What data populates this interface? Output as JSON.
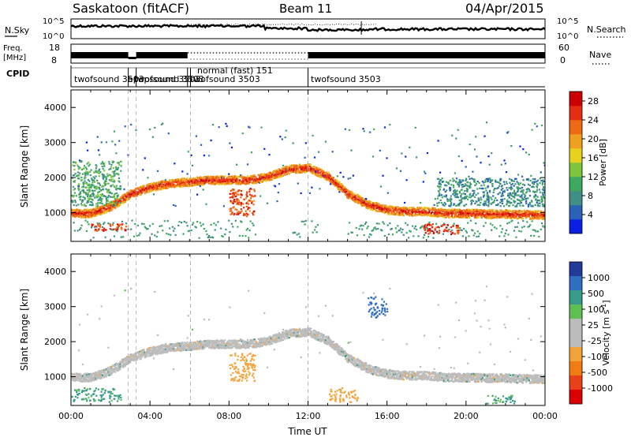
{
  "header": {
    "station": "Saskatoon (fitACF)",
    "beam": "Beam 11",
    "date": "04/Apr/2015"
  },
  "noise_panel": {
    "left_label": "N.Sky",
    "right_label": "N.Search",
    "left_ticks": [
      "10^5",
      "10^0"
    ],
    "right_ticks": [
      "10^5",
      "10^0"
    ]
  },
  "freq_panel": {
    "left_label": "Freq.",
    "left_unit": "[MHz]",
    "left_ticks": [
      "18",
      "8"
    ],
    "right_label": "Nave",
    "right_ticks": [
      "60",
      "0"
    ]
  },
  "cpid_panel": {
    "label": "CPID",
    "segments": [
      {
        "label": "twofsound 3503",
        "start_hour": 0.0
      },
      {
        "label": "epopsound 3503",
        "start_hour": 2.9
      },
      {
        "label": "twofsound 3503",
        "start_hour": 3.3
      },
      {
        "label": "normal (fast) 151",
        "start_hour": 5.9
      },
      {
        "label": "twofsound 3503",
        "start_hour": 6.05
      },
      {
        "label": "twofsound 3503",
        "start_hour": 12.0
      }
    ]
  },
  "colors": {
    "power_scale": [
      "#0a1fe6",
      "#2a62b8",
      "#3f8f86",
      "#3fa860",
      "#7bc43c",
      "#e6d11f",
      "#f0a020",
      "#ee6a14",
      "#e52d12",
      "#cc0000"
    ],
    "velocity_scale": [
      "#223a9a",
      "#2f6fc2",
      "#3a9a8a",
      "#5fc052",
      "#bcbcbc",
      "#bcbcbc",
      "#f2a43a",
      "#f07c12",
      "#e8401a",
      "#dd0000"
    ]
  },
  "chart_data": [
    {
      "type": "heatmap",
      "title": "Power",
      "xlabel": "",
      "ylabel": "Slant Range [km]",
      "xlim": [
        0,
        24
      ],
      "ylim": [
        180,
        4500
      ],
      "y_ticks": [
        "1000",
        "2000",
        "3000",
        "4000"
      ],
      "colorbar": {
        "label": "Power [dB]",
        "ticks": [
          "28",
          "24",
          "20",
          "16",
          "12",
          "8",
          "4"
        ],
        "range": [
          0,
          30
        ]
      },
      "main_trace": [
        {
          "x": 0.0,
          "y": 1000
        },
        {
          "x": 1.0,
          "y": 1000
        },
        {
          "x": 2.0,
          "y": 1200
        },
        {
          "x": 3.0,
          "y": 1550
        },
        {
          "x": 4.0,
          "y": 1750
        },
        {
          "x": 5.0,
          "y": 1850
        },
        {
          "x": 6.0,
          "y": 1900
        },
        {
          "x": 7.0,
          "y": 1950
        },
        {
          "x": 8.0,
          "y": 1950
        },
        {
          "x": 9.0,
          "y": 1950
        },
        {
          "x": 10.0,
          "y": 2050
        },
        {
          "x": 11.0,
          "y": 2250
        },
        {
          "x": 12.0,
          "y": 2300
        },
        {
          "x": 13.0,
          "y": 2050
        },
        {
          "x": 14.0,
          "y": 1550
        },
        {
          "x": 15.0,
          "y": 1250
        },
        {
          "x": 16.0,
          "y": 1100
        },
        {
          "x": 17.0,
          "y": 1050
        },
        {
          "x": 18.0,
          "y": 1050
        },
        {
          "x": 19.0,
          "y": 1000
        },
        {
          "x": 20.0,
          "y": 1000
        },
        {
          "x": 21.0,
          "y": 980
        },
        {
          "x": 22.0,
          "y": 980
        },
        {
          "x": 23.0,
          "y": 960
        },
        {
          "x": 24.0,
          "y": 950
        }
      ],
      "blobs": [
        {
          "x0": 8.0,
          "x1": 9.3,
          "y0": 900,
          "y1": 1700,
          "power": 24
        },
        {
          "x0": 1.0,
          "x1": 2.8,
          "y0": 500,
          "y1": 700,
          "power": 26
        },
        {
          "x0": 17.8,
          "x1": 19.6,
          "y0": 400,
          "y1": 700,
          "power": 26
        },
        {
          "x0": 0.0,
          "x1": 2.5,
          "y0": 1200,
          "y1": 2500,
          "power": 10
        },
        {
          "x0": 18.5,
          "x1": 24.0,
          "y0": 1200,
          "y1": 2000,
          "power": 8
        }
      ]
    },
    {
      "type": "heatmap",
      "title": "Velocity",
      "xlabel": "Time UT",
      "ylabel": "Slant Range [km]",
      "xlim": [
        0,
        24
      ],
      "ylim": [
        180,
        4500
      ],
      "y_ticks": [
        "1000",
        "2000",
        "3000",
        "4000"
      ],
      "x_ticks": [
        "00:00",
        "04:00",
        "08:00",
        "12:00",
        "16:00",
        "20:00",
        "00:00"
      ],
      "colorbar": {
        "label": "Velocity [m s^-1]",
        "ticks": [
          "1000",
          "500",
          "100",
          "25",
          "-25",
          "-100",
          "-500",
          "-1000"
        ],
        "range": [
          -1000,
          1000
        ]
      },
      "blobs": [
        {
          "x0": 8.0,
          "x1": 9.3,
          "y0": 900,
          "y1": 1700,
          "velocity": -300
        },
        {
          "x0": 0.0,
          "x1": 2.5,
          "y0": 300,
          "y1": 700,
          "velocity": 150
        },
        {
          "x0": 15.0,
          "x1": 16.0,
          "y0": 2700,
          "y1": 3300,
          "velocity": 800
        },
        {
          "x0": 13.0,
          "x1": 14.5,
          "y0": 300,
          "y1": 700,
          "velocity": -300
        },
        {
          "x0": 21.0,
          "x1": 22.5,
          "y0": 250,
          "y1": 500,
          "velocity": 150
        }
      ]
    }
  ]
}
